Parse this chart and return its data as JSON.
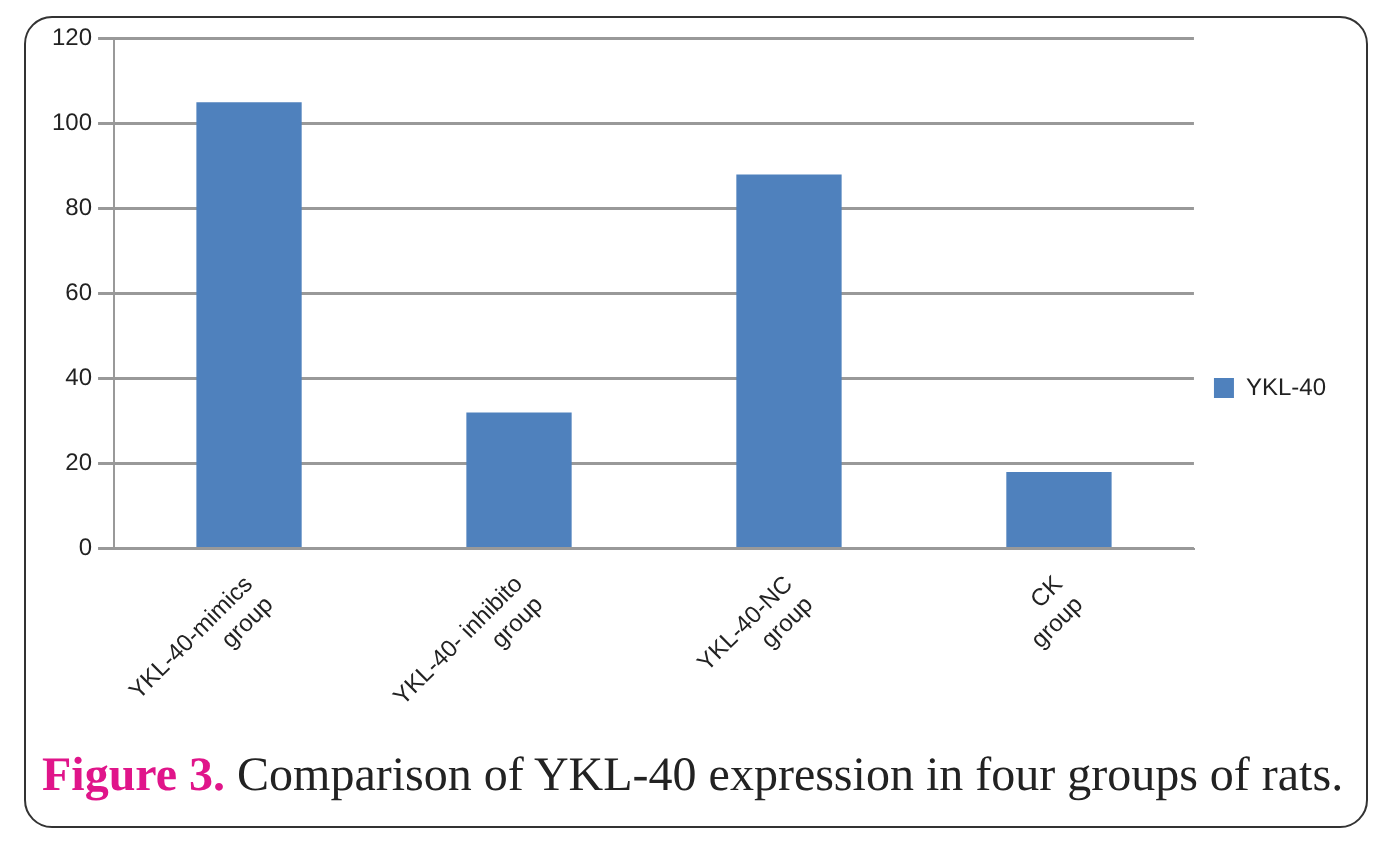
{
  "chart_data": {
    "type": "bar",
    "categories": [
      "YKL-40-mimics group",
      "YKL-40- inhibito group",
      "YKL-40-NC group",
      "CK group"
    ],
    "series": [
      {
        "name": "YKL-40",
        "color": "#4f81bd",
        "values": [
          105,
          32,
          88,
          18
        ]
      }
    ],
    "ylim": [
      0,
      120
    ],
    "yticks": [
      0,
      20,
      40,
      60,
      80,
      100,
      120
    ],
    "grid": "y",
    "legend": "right",
    "annotations": [
      "Figure 3. Comparison of YKL-40 expression in four groups of rats."
    ]
  }
}
